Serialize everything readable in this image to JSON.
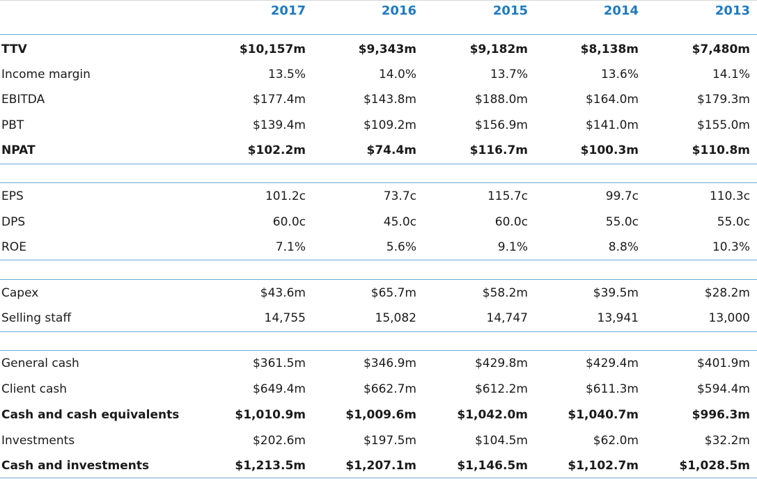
{
  "years": [
    "2017",
    "2016",
    "2015",
    "2014",
    "2013"
  ],
  "sections": [
    {
      "rows": [
        {
          "label": "TTV",
          "bold": true,
          "values": [
            "$10,157m",
            "$9,343m",
            "$9,182m",
            "$8,138m",
            "$7,480m"
          ]
        },
        {
          "label": "Income margin",
          "bold": false,
          "values": [
            "13.5%",
            "14.0%",
            "13.7%",
            "13.6%",
            "14.1%"
          ]
        },
        {
          "label": "EBITDA",
          "bold": false,
          "values": [
            "$177.4m",
            "$143.8m",
            "$188.0m",
            "$164.0m",
            "$179.3m"
          ]
        },
        {
          "label": "PBT",
          "bold": false,
          "values": [
            "$139.4m",
            "$109.2m",
            "$156.9m",
            "$141.0m",
            "$155.0m"
          ]
        },
        {
          "label": "NPAT",
          "bold": true,
          "values": [
            "$102.2m",
            "$74.4m",
            "$116.7m",
            "$100.3m",
            "$110.8m"
          ]
        }
      ]
    },
    {
      "rows": [
        {
          "label": "EPS",
          "bold": false,
          "values": [
            "101.2c",
            "73.7c",
            "115.7c",
            "99.7c",
            "110.3c"
          ]
        },
        {
          "label": "DPS",
          "bold": false,
          "values": [
            "60.0c",
            "45.0c",
            "60.0c",
            "55.0c",
            "55.0c"
          ]
        },
        {
          "label": "ROE",
          "bold": false,
          "values": [
            "7.1%",
            "5.6%",
            "9.1%",
            "8.8%",
            "10.3%"
          ]
        }
      ]
    },
    {
      "rows": [
        {
          "label": "Capex",
          "bold": false,
          "values": [
            "$43.6m",
            "$65.7m",
            "$58.2m",
            "$39.5m",
            "$28.2m"
          ]
        },
        {
          "label": "Selling staff",
          "bold": false,
          "values": [
            "14,755",
            "15,082",
            "14,747",
            "13,941",
            "13,000"
          ]
        }
      ]
    },
    {
      "rows": [
        {
          "label": "General cash",
          "bold": false,
          "values": [
            "$361.5m",
            "$346.9m",
            "$429.8m",
            "$429.4m",
            "$401.9m"
          ]
        },
        {
          "label": "Client cash",
          "bold": false,
          "values": [
            "$649.4m",
            "$662.7m",
            "$612.2m",
            "$611.3m",
            "$594.4m"
          ]
        },
        {
          "label": "Cash and cash equivalents",
          "bold": true,
          "values": [
            "$1,010.9m",
            "$1,009.6m",
            "$1,042.0m",
            "$1,040.7m",
            "$996.3m"
          ]
        },
        {
          "label": "Investments",
          "bold": false,
          "values": [
            "$202.6m",
            "$197.5m",
            "$104.5m",
            "$62.0m",
            "$32.2m"
          ]
        },
        {
          "label": "Cash and investments",
          "bold": true,
          "values": [
            "$1,213.5m",
            "$1,207.1m",
            "$1,146.5m",
            "$1,102.7m",
            "$1,028.5m"
          ]
        }
      ]
    }
  ]
}
